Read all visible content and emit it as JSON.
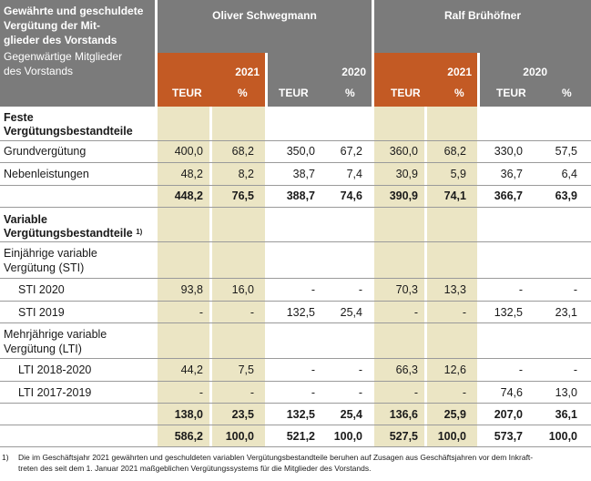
{
  "header": {
    "title_bold": "Gewährte und geschuldete Vergütung der Mit-glieder des Vorstands",
    "title_bold_lines": [
      "Gewährte und geschuldete",
      "Vergütung der Mit-",
      "glieder des Vorstands"
    ],
    "subtitle_lines": [
      "Gegenwärtige Mitglieder",
      "des Vorstands"
    ],
    "persons": [
      "Oliver Schwegmann",
      "Ralf Brühöfner"
    ],
    "years": [
      "2021",
      "2020",
      "2021",
      "2020"
    ],
    "units": [
      "TEUR",
      "%",
      "TEUR",
      "%",
      "TEUR",
      "%",
      "TEUR",
      "%"
    ]
  },
  "rows": [
    {
      "label_lines": [
        "Feste",
        "Vergütungsbestandteile"
      ],
      "bold": true,
      "values": [
        "",
        "",
        "",
        "",
        "",
        "",
        "",
        ""
      ]
    },
    {
      "label": "Grundvergütung",
      "values": [
        "400,0",
        "68,2",
        "350,0",
        "67,2",
        "360,0",
        "68,2",
        "330,0",
        "57,5"
      ]
    },
    {
      "label": "Nebenleistungen",
      "values": [
        "48,2",
        "8,2",
        "38,7",
        "7,4",
        "30,9",
        "5,9",
        "36,7",
        "6,4"
      ]
    },
    {
      "label": "",
      "bold": true,
      "values": [
        "448,2",
        "76,5",
        "388,7",
        "74,6",
        "390,9",
        "74,1",
        "366,7",
        "63,9"
      ]
    },
    {
      "label_lines": [
        "Variable",
        "Vergütungsbestandteile"
      ],
      "footnote_mark": "1)",
      "bold": true,
      "values": [
        "",
        "",
        "",
        "",
        "",
        "",
        "",
        ""
      ]
    },
    {
      "label_lines": [
        "Einjährige variable",
        "Vergütung (STI)"
      ],
      "values": [
        "",
        "",
        "",
        "",
        "",
        "",
        "",
        ""
      ]
    },
    {
      "label": "STI 2020",
      "indent": true,
      "values": [
        "93,8",
        "16,0",
        "-",
        "-",
        "70,3",
        "13,3",
        "-",
        "-"
      ]
    },
    {
      "label": "STI 2019",
      "indent": true,
      "values": [
        "-",
        "-",
        "132,5",
        "25,4",
        "-",
        "-",
        "132,5",
        "23,1"
      ]
    },
    {
      "label_lines": [
        "Mehrjährige variable",
        "Vergütung (LTI)"
      ],
      "values": [
        "",
        "",
        "",
        "",
        "",
        "",
        "",
        ""
      ]
    },
    {
      "label": "LTI 2018-2020",
      "indent": true,
      "values": [
        "44,2",
        "7,5",
        "-",
        "-",
        "66,3",
        "12,6",
        "-",
        "-"
      ]
    },
    {
      "label": "LTI 2017-2019",
      "indent": true,
      "values": [
        "-",
        "-",
        "-",
        "-",
        "-",
        "-",
        "74,6",
        "13,0"
      ]
    },
    {
      "label": "",
      "bold": true,
      "values": [
        "138,0",
        "23,5",
        "132,5",
        "25,4",
        "136,6",
        "25,9",
        "207,0",
        "36,1"
      ]
    },
    {
      "label": "",
      "bold": true,
      "values": [
        "586,2",
        "100,0",
        "521,2",
        "100,0",
        "527,5",
        "100,0",
        "573,7",
        "100,0"
      ]
    }
  ],
  "footnote": {
    "mark": "1)",
    "text": "Die im Geschäftsjahr 2021 gewährten und geschuldeten variablen Vergütungsbestandteile beruhen auf Zusagen aus Geschäftsjahren vor dem Inkraft-treten des seit dem 1. Januar 2021 maßgeblichen Vergütungssystems für die Mitglieder des Vorstands.",
    "lines": [
      "Die im Geschäftsjahr 2021 gewährten und geschuldeten variablen Vergütungsbestandteile beruhen auf Zusagen aus Geschäftsjahren vor dem Inkraft-",
      "treten des seit dem 1. Januar 2021 maßgeblichen Vergütungssystems für die Mitglieder des Vorstands."
    ]
  },
  "colors": {
    "header_gray": "#7b7b7b",
    "accent_orange": "#c35a24",
    "highlight_beige": "#ebe5c4"
  }
}
